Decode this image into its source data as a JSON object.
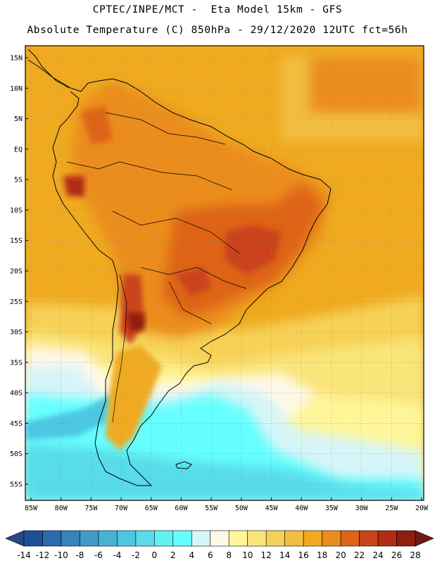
{
  "header": {
    "line1": "CPTEC/INPE/MCT -  Eta Model 15km - GFS",
    "line2": "Absolute Temperature (C) 850hPa - 29/12/2020 12UTC fct=56h"
  },
  "map": {
    "region": "South America",
    "lat_labels": [
      "15N",
      "10N",
      "5N",
      "EQ",
      "5S",
      "10S",
      "15S",
      "20S",
      "25S",
      "30S",
      "35S",
      "40S",
      "45S",
      "50S",
      "55S"
    ],
    "lon_labels": [
      "85W",
      "80W",
      "75W",
      "70W",
      "65W",
      "60W",
      "55W",
      "50W",
      "45W",
      "40W",
      "35W",
      "30W",
      "25W",
      "20W"
    ],
    "lat_values": [
      15,
      10,
      5,
      0,
      -5,
      -10,
      -15,
      -20,
      -25,
      -30,
      -35,
      -40,
      -45,
      -50,
      -55
    ],
    "lon_values": [
      -85,
      -80,
      -75,
      -70,
      -65,
      -60,
      -55,
      -50,
      -45,
      -40,
      -35,
      -30,
      -25,
      -20
    ]
  },
  "legend": {
    "labels": [
      "-14",
      "-12",
      "-10",
      "-8",
      "-6",
      "-4",
      "-2",
      "0",
      "2",
      "4",
      "6",
      "8",
      "10",
      "12",
      "14",
      "16",
      "18",
      "20",
      "22",
      "24",
      "26",
      "28"
    ],
    "colors": [
      "#2a4488",
      "#1f4f97",
      "#2a6aad",
      "#3783ba",
      "#3f9bc9",
      "#46b2d6",
      "#4cc7e2",
      "#58dbea",
      "#62f0f2",
      "#66ffff",
      "#d6f5f8",
      "#fff8e8",
      "#fff69a",
      "#fae57a",
      "#f6d157",
      "#f2be40",
      "#efaa20",
      "#eb8d1e",
      "#de6315",
      "#c9431a",
      "#b12c13",
      "#8f1d10",
      "#6e1a12"
    ]
  }
}
